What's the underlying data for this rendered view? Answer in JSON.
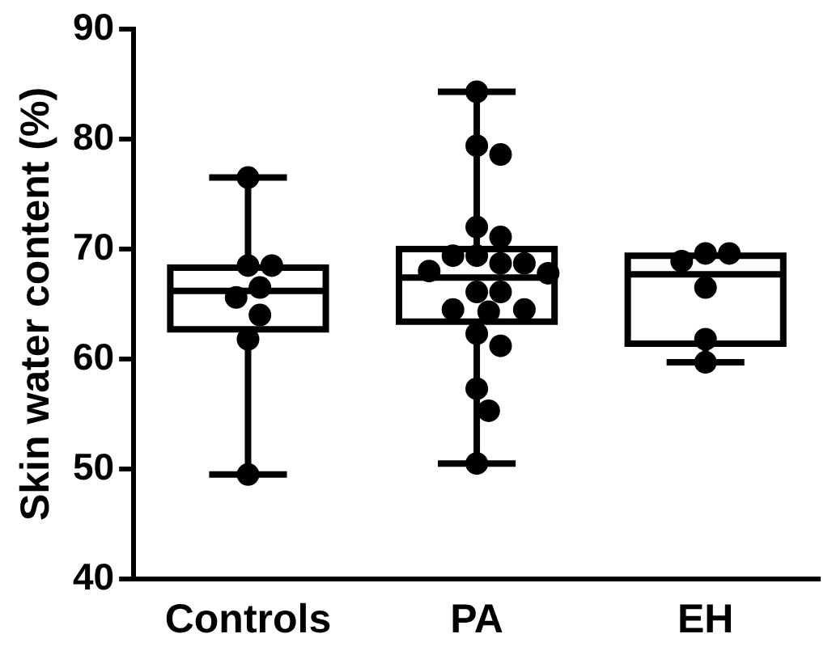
{
  "chart_data": {
    "type": "box",
    "ylabel": "Skin water content (%)",
    "categories": [
      "Controls",
      "PA",
      "EH"
    ],
    "boxes": [
      {
        "low": 49.5,
        "q1": 62.7,
        "median": 66.2,
        "q3": 68.3,
        "high": 76.5
      },
      {
        "low": 50.5,
        "q1": 63.4,
        "median": 67.4,
        "q3": 70.0,
        "high": 84.3
      },
      {
        "low": 59.7,
        "q1": 61.4,
        "median": 67.7,
        "q3": 69.4,
        "high": 69.4
      }
    ],
    "series": [
      {
        "type": "scatter",
        "color": "#000000",
        "x": [
          "Controls",
          "Controls",
          "Controls",
          "Controls",
          "Controls",
          "Controls",
          "Controls",
          "Controls",
          "PA",
          "PA",
          "PA",
          "PA",
          "PA",
          "PA",
          "PA",
          "PA",
          "PA",
          "PA",
          "PA",
          "PA",
          "PA",
          "PA",
          "PA",
          "PA",
          "PA",
          "PA",
          "PA",
          "PA",
          "PA",
          "EH",
          "EH",
          "EH",
          "EH",
          "EH",
          "EH"
        ],
        "values": [
          76.5,
          68.5,
          68.5,
          66.5,
          65.6,
          64.0,
          61.8,
          49.5,
          84.3,
          79.4,
          78.6,
          72.0,
          71.1,
          69.4,
          69.4,
          68.7,
          68.7,
          68.0,
          67.8,
          66.1,
          66.1,
          64.5,
          64.3,
          64.5,
          62.3,
          61.2,
          57.3,
          55.3,
          50.5,
          69.6,
          69.6,
          68.9,
          66.5,
          61.8,
          59.7
        ]
      }
    ],
    "ylim": [
      40,
      90
    ],
    "yticks": [
      40,
      50,
      60,
      70,
      80,
      90
    ],
    "grid": false,
    "legend": false,
    "marker": "circle"
  }
}
